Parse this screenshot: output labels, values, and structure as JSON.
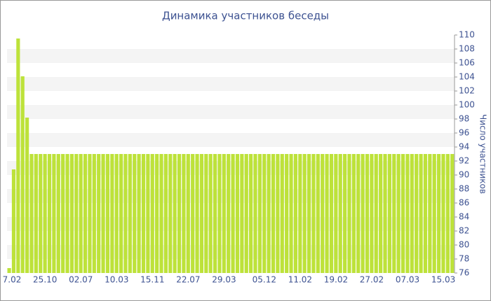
{
  "chart_data": {
    "type": "bar",
    "title": "Динамика участников беседы",
    "y_label": "Число участников",
    "categories": [
      "7.02",
      null,
      null,
      null,
      null,
      null,
      null,
      null,
      "25.10",
      null,
      null,
      null,
      null,
      null,
      null,
      null,
      "02.07",
      null,
      null,
      null,
      null,
      null,
      null,
      null,
      "10.03",
      null,
      null,
      null,
      null,
      null,
      null,
      null,
      "15.11",
      null,
      null,
      null,
      null,
      null,
      null,
      null,
      "22.07",
      null,
      null,
      null,
      null,
      null,
      null,
      null,
      "29.03",
      null,
      null,
      null,
      null,
      null,
      null,
      null,
      null,
      "05.12",
      null,
      null,
      null,
      null,
      null,
      null,
      null,
      "11.02",
      null,
      null,
      null,
      null,
      null,
      null,
      null,
      "19.02",
      null,
      null,
      null,
      null,
      null,
      null,
      null,
      "27.02",
      null,
      null,
      null,
      null,
      null,
      null,
      null,
      "07.03",
      null,
      null,
      null,
      null,
      null,
      null,
      null,
      "15.03",
      null,
      null
    ],
    "values": [
      76.7,
      90.8,
      109.5,
      104.1,
      98.2,
      93,
      93,
      93,
      93,
      93,
      93,
      93,
      93,
      93,
      93,
      93,
      93,
      93,
      93,
      93,
      93,
      93,
      93,
      93,
      93,
      93,
      93,
      93,
      93,
      93,
      93,
      93,
      93,
      93,
      93,
      93,
      93,
      93,
      93,
      93,
      93,
      93,
      93,
      93,
      93,
      93,
      93,
      93,
      93,
      93,
      93,
      93,
      93,
      93,
      93,
      93,
      93,
      93,
      93,
      93,
      93,
      93,
      93,
      93,
      93,
      93,
      93,
      93,
      93,
      93,
      93,
      93,
      93,
      93,
      93,
      93,
      93,
      93,
      93,
      93,
      93,
      93,
      93,
      93,
      93,
      93,
      93,
      93,
      93,
      93,
      93,
      93,
      93,
      93,
      93,
      93,
      93,
      93,
      93,
      93
    ],
    "color": "#bde23a",
    "ylim": [
      76,
      110
    ],
    "yticks": [
      76,
      78,
      80,
      82,
      84,
      86,
      88,
      90,
      92,
      94,
      96,
      98,
      100,
      102,
      104,
      106,
      108,
      110
    ],
    "grid": true
  }
}
